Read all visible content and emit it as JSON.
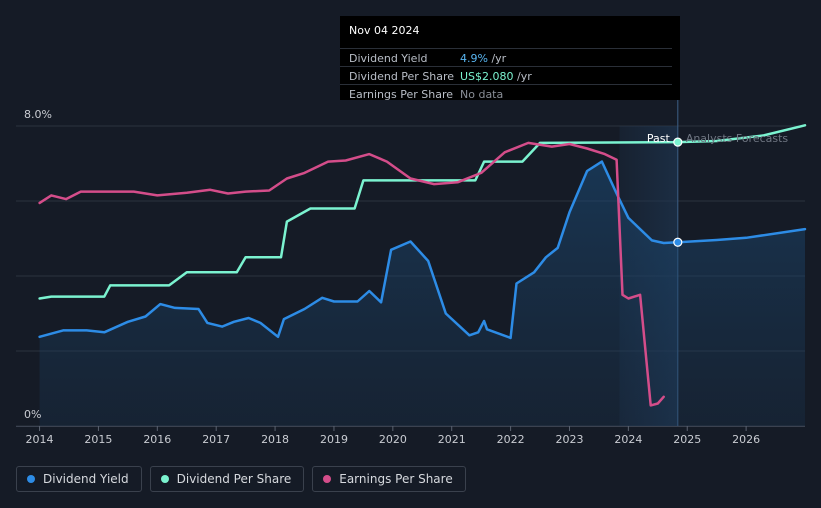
{
  "tooltip": {
    "date": "Nov 04 2024",
    "rows": [
      {
        "label": "Dividend Yield",
        "value": "4.9%",
        "unit": "/yr"
      },
      {
        "label": "Dividend Per Share",
        "value": "US$2.080",
        "unit": "/yr"
      },
      {
        "label": "Earnings Per Share",
        "value": "No data",
        "unit": ""
      }
    ]
  },
  "legend": [
    {
      "label": "Dividend Yield",
      "color": "#2d8ce6"
    },
    {
      "label": "Dividend Per Share",
      "color": "#7bf3d0"
    },
    {
      "label": "Earnings Per Share",
      "color": "#d44d8a"
    }
  ],
  "annotations": {
    "past": "Past",
    "forecast": "Analysts Forecasts"
  },
  "chart_data": {
    "type": "line",
    "y_axis_labels": [
      "8.0%",
      "0%"
    ],
    "ylim": [
      0,
      8
    ],
    "xlim": [
      2013.6,
      2027
    ],
    "x_ticks": [
      "2014",
      "2015",
      "2016",
      "2017",
      "2018",
      "2019",
      "2020",
      "2021",
      "2022",
      "2023",
      "2024",
      "2025",
      "2026"
    ],
    "past_end": 2024.84,
    "forecast_start": 2023.85,
    "grid": true,
    "series": [
      {
        "name": "Dividend Yield",
        "color": "#2d8ce6",
        "area": true,
        "points": [
          [
            2014.0,
            2.38
          ],
          [
            2014.4,
            2.55
          ],
          [
            2014.8,
            2.55
          ],
          [
            2015.1,
            2.5
          ],
          [
            2015.5,
            2.78
          ],
          [
            2015.8,
            2.92
          ],
          [
            2016.05,
            3.25
          ],
          [
            2016.3,
            3.15
          ],
          [
            2016.7,
            3.12
          ],
          [
            2016.85,
            2.75
          ],
          [
            2017.1,
            2.65
          ],
          [
            2017.3,
            2.78
          ],
          [
            2017.55,
            2.88
          ],
          [
            2017.75,
            2.75
          ],
          [
            2018.05,
            2.38
          ],
          [
            2018.15,
            2.85
          ],
          [
            2018.5,
            3.12
          ],
          [
            2018.8,
            3.42
          ],
          [
            2019.0,
            3.32
          ],
          [
            2019.4,
            3.32
          ],
          [
            2019.6,
            3.6
          ],
          [
            2019.8,
            3.3
          ],
          [
            2019.97,
            4.7
          ],
          [
            2020.3,
            4.92
          ],
          [
            2020.6,
            4.4
          ],
          [
            2020.9,
            3.0
          ],
          [
            2021.3,
            2.42
          ],
          [
            2021.45,
            2.5
          ],
          [
            2021.55,
            2.8
          ],
          [
            2021.6,
            2.58
          ],
          [
            2022.0,
            2.35
          ],
          [
            2022.1,
            3.8
          ],
          [
            2022.4,
            4.1
          ],
          [
            2022.6,
            4.5
          ],
          [
            2022.8,
            4.75
          ],
          [
            2023.0,
            5.7
          ],
          [
            2023.3,
            6.8
          ],
          [
            2023.55,
            7.05
          ],
          [
            2023.8,
            6.2
          ],
          [
            2024.0,
            5.55
          ],
          [
            2024.4,
            4.95
          ],
          [
            2024.6,
            4.88
          ],
          [
            2024.84,
            4.9
          ],
          [
            2025.5,
            4.96
          ],
          [
            2026.0,
            5.02
          ],
          [
            2027.0,
            5.25
          ]
        ]
      },
      {
        "name": "Dividend Per Share",
        "color": "#7bf3d0",
        "area": false,
        "points": [
          [
            2014.0,
            3.4
          ],
          [
            2014.2,
            3.45
          ],
          [
            2015.1,
            3.45
          ],
          [
            2015.2,
            3.75
          ],
          [
            2016.2,
            3.75
          ],
          [
            2016.5,
            4.1
          ],
          [
            2017.35,
            4.1
          ],
          [
            2017.5,
            4.5
          ],
          [
            2018.1,
            4.5
          ],
          [
            2018.2,
            5.45
          ],
          [
            2018.6,
            5.8
          ],
          [
            2019.35,
            5.8
          ],
          [
            2019.5,
            6.55
          ],
          [
            2021.4,
            6.55
          ],
          [
            2021.55,
            7.05
          ],
          [
            2022.2,
            7.05
          ],
          [
            2022.5,
            7.55
          ],
          [
            2024.84,
            7.57
          ],
          [
            2025.5,
            7.6
          ],
          [
            2026.3,
            7.75
          ],
          [
            2027.0,
            8.02
          ]
        ]
      },
      {
        "name": "Earnings Per Share",
        "color": "#d44d8a",
        "area": false,
        "points": [
          [
            2014.0,
            5.95
          ],
          [
            2014.2,
            6.15
          ],
          [
            2014.45,
            6.05
          ],
          [
            2014.7,
            6.25
          ],
          [
            2015.3,
            6.25
          ],
          [
            2015.6,
            6.25
          ],
          [
            2016.0,
            6.15
          ],
          [
            2016.5,
            6.22
          ],
          [
            2016.9,
            6.3
          ],
          [
            2017.2,
            6.2
          ],
          [
            2017.5,
            6.25
          ],
          [
            2017.9,
            6.28
          ],
          [
            2018.2,
            6.6
          ],
          [
            2018.5,
            6.75
          ],
          [
            2018.9,
            7.05
          ],
          [
            2019.2,
            7.08
          ],
          [
            2019.6,
            7.25
          ],
          [
            2019.9,
            7.05
          ],
          [
            2020.3,
            6.6
          ],
          [
            2020.7,
            6.45
          ],
          [
            2021.1,
            6.5
          ],
          [
            2021.5,
            6.75
          ],
          [
            2021.9,
            7.3
          ],
          [
            2022.3,
            7.55
          ],
          [
            2022.7,
            7.45
          ],
          [
            2023.0,
            7.52
          ],
          [
            2023.3,
            7.4
          ],
          [
            2023.6,
            7.25
          ],
          [
            2023.8,
            7.1
          ],
          [
            2023.9,
            3.5
          ],
          [
            2024.0,
            3.4
          ],
          [
            2024.2,
            3.5
          ],
          [
            2024.38,
            0.55
          ],
          [
            2024.5,
            0.6
          ],
          [
            2024.6,
            0.78
          ]
        ]
      }
    ]
  }
}
